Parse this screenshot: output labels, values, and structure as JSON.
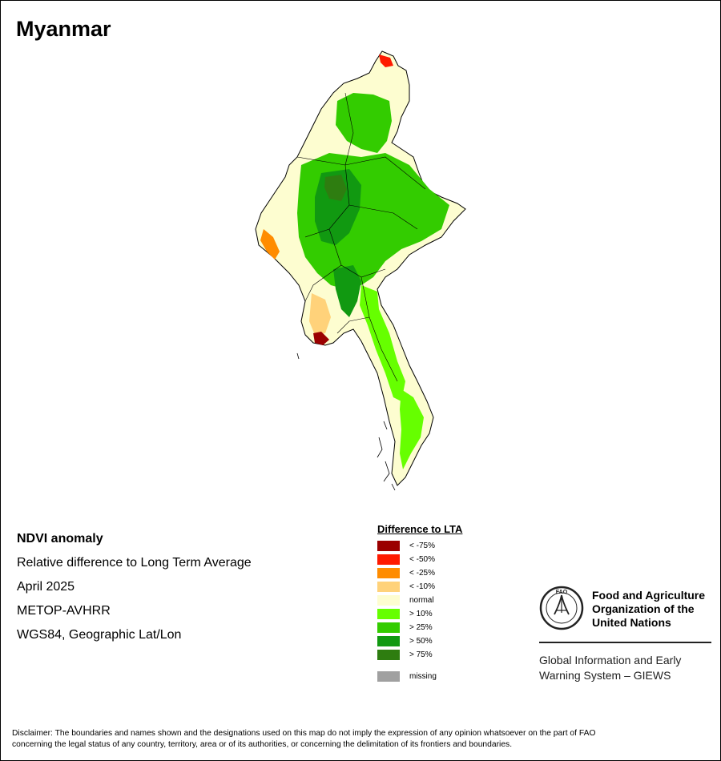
{
  "map_title": "Myanmar",
  "info": {
    "heading": "NDVI anomaly",
    "subtitle": "Relative difference to Long Term Average",
    "period": "April 2025",
    "sensor": "METOP-AVHRR",
    "projection": "WGS84, Geographic Lat/Lon"
  },
  "legend": {
    "title": "Difference to LTA",
    "items": [
      {
        "label": "< -75%",
        "color": "#9b0000"
      },
      {
        "label": "< -50%",
        "color": "#ff1a00"
      },
      {
        "label": "< -25%",
        "color": "#ff8c00"
      },
      {
        "label": "< -10%",
        "color": "#ffd27a"
      },
      {
        "label": "normal",
        "color": "#fdfdd0"
      },
      {
        "label": "> 10%",
        "color": "#66ff00"
      },
      {
        "label": "> 25%",
        "color": "#33cc00"
      },
      {
        "label": "> 50%",
        "color": "#119911"
      },
      {
        "label": "> 75%",
        "color": "#2e7d10"
      }
    ],
    "missing": {
      "label": "missing",
      "color": "#a0a0a0"
    }
  },
  "fao": {
    "logo_text": "FAO",
    "name_lines": [
      "Food and Agriculture",
      "Organization of the",
      "United Nations"
    ],
    "giews_lines": [
      "Global Information and Early",
      "Warning System – GIEWS"
    ]
  },
  "disclaimer": {
    "line1": "Disclaimer: The boundaries and names shown and the designations used on this map do not imply the expression of any opinion whatsoever on the part of FAO",
    "line2": "concerning the legal status of any country, territory, area or of its authorities, or concerning the delimitation of its frontiers and boundaries."
  }
}
